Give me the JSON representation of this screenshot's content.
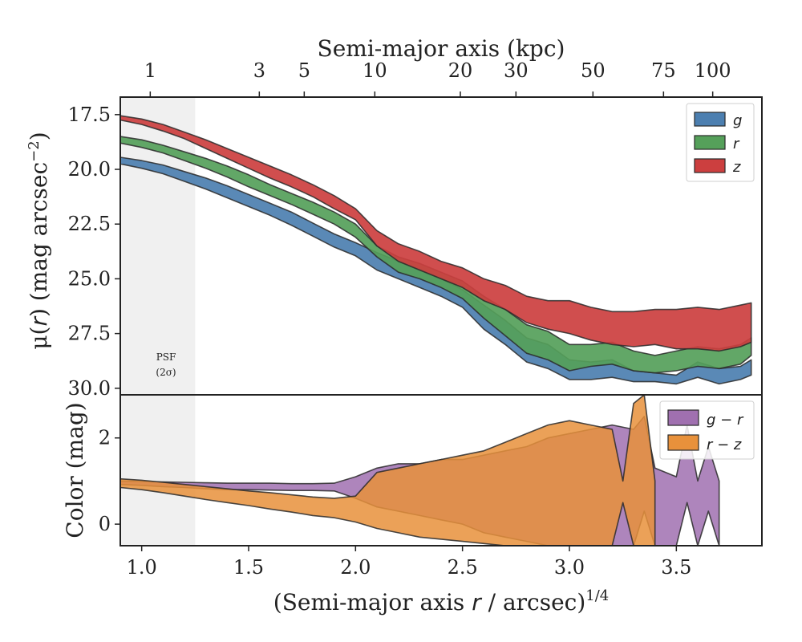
{
  "chart_data": [
    {
      "type": "area",
      "panel": "surface-brightness",
      "top_axis": {
        "label": "Semi-major axis (kpc)",
        "ticks": [
          {
            "label": "1",
            "x": 1.04
          },
          {
            "label": "3",
            "x": 1.55
          },
          {
            "label": "5",
            "x": 1.76
          },
          {
            "label": "10",
            "x": 2.09
          },
          {
            "label": "20",
            "x": 2.49
          },
          {
            "label": "30",
            "x": 2.75
          },
          {
            "label": "50",
            "x": 3.11
          },
          {
            "label": "75",
            "x": 3.44
          },
          {
            "label": "100",
            "x": 3.67
          }
        ]
      },
      "ylabel": "μ(r) (mag arcsec⁻²)",
      "ylabel_parts": {
        "mu": "μ",
        "r": "r",
        "rest": ") (mag arcsec",
        "sup": "−2",
        "close": ")"
      },
      "ylim": [
        30.3,
        16.7
      ],
      "y_ticks": [
        "17.5",
        "20.0",
        "22.5",
        "25.0",
        "27.5",
        "30.0"
      ],
      "y_tick_values": [
        17.5,
        20.0,
        22.5,
        25.0,
        27.5,
        30.0
      ],
      "psf_label": [
        "PSF",
        "(2σ)"
      ],
      "psf_range": [
        0.9,
        1.25
      ],
      "legend": {
        "position": "top-right",
        "entries": [
          "g",
          "r",
          "z"
        ]
      },
      "series": [
        {
          "name": "g",
          "color": "#4c7fb0",
          "x": [
            0.9,
            1.0,
            1.1,
            1.2,
            1.3,
            1.4,
            1.5,
            1.6,
            1.7,
            1.8,
            1.9,
            2.0,
            2.1,
            2.2,
            2.3,
            2.4,
            2.5,
            2.6,
            2.7,
            2.8,
            2.9,
            3.0,
            3.1,
            3.2,
            3.3,
            3.4,
            3.5,
            3.6,
            3.7,
            3.8,
            3.85
          ],
          "lo": [
            19.45,
            19.6,
            19.8,
            20.1,
            20.4,
            20.75,
            21.15,
            21.55,
            21.95,
            22.45,
            22.95,
            23.35,
            23.8,
            24.2,
            24.55,
            25.0,
            25.5,
            26.2,
            26.9,
            27.7,
            28.0,
            28.7,
            28.8,
            28.7,
            29.2,
            29.3,
            29.4,
            28.8,
            29.1,
            29.0,
            28.7
          ],
          "hi": [
            19.75,
            19.95,
            20.2,
            20.55,
            20.9,
            21.3,
            21.7,
            22.1,
            22.55,
            23.05,
            23.55,
            23.95,
            24.6,
            25.0,
            25.4,
            25.8,
            26.3,
            27.3,
            28.0,
            28.8,
            29.1,
            29.6,
            29.6,
            29.5,
            29.7,
            29.7,
            29.8,
            29.5,
            29.8,
            29.6,
            29.4
          ]
        },
        {
          "name": "r",
          "color": "#55a05a",
          "x": [
            0.9,
            1.0,
            1.1,
            1.2,
            1.3,
            1.4,
            1.5,
            1.6,
            1.7,
            1.8,
            1.9,
            2.0,
            2.1,
            2.2,
            2.3,
            2.4,
            2.5,
            2.6,
            2.7,
            2.8,
            2.9,
            3.0,
            3.1,
            3.2,
            3.3,
            3.4,
            3.5,
            3.6,
            3.7,
            3.8,
            3.85
          ],
          "lo": [
            18.5,
            18.65,
            18.9,
            19.2,
            19.5,
            19.85,
            20.25,
            20.7,
            21.1,
            21.5,
            21.95,
            22.5,
            23.5,
            24.0,
            24.3,
            24.7,
            25.1,
            25.8,
            26.4,
            27.1,
            27.4,
            28.0,
            28.0,
            27.9,
            28.3,
            28.5,
            28.3,
            28.1,
            28.2,
            28.0,
            27.7
          ],
          "hi": [
            18.8,
            19.0,
            19.25,
            19.6,
            19.95,
            20.35,
            20.8,
            21.2,
            21.6,
            22.05,
            22.5,
            23.1,
            24.0,
            24.7,
            25.0,
            25.4,
            25.9,
            26.8,
            27.6,
            28.4,
            28.7,
            29.2,
            29.0,
            28.9,
            29.2,
            29.3,
            29.2,
            29.0,
            29.1,
            28.9,
            28.5
          ]
        },
        {
          "name": "z",
          "color": "#cc3f3f",
          "x": [
            0.9,
            1.0,
            1.1,
            1.2,
            1.3,
            1.4,
            1.5,
            1.6,
            1.7,
            1.8,
            1.9,
            2.0,
            2.1,
            2.2,
            2.3,
            2.4,
            2.5,
            2.6,
            2.7,
            2.8,
            2.9,
            3.0,
            3.1,
            3.2,
            3.3,
            3.4,
            3.5,
            3.6,
            3.7,
            3.8,
            3.85
          ],
          "lo": [
            17.55,
            17.7,
            17.95,
            18.3,
            18.65,
            19.05,
            19.45,
            19.85,
            20.25,
            20.7,
            21.2,
            21.8,
            22.8,
            23.4,
            23.75,
            24.2,
            24.5,
            25.0,
            25.3,
            25.8,
            26.0,
            26.0,
            26.3,
            26.5,
            26.5,
            26.4,
            26.4,
            26.3,
            26.4,
            26.2,
            26.1
          ],
          "hi": [
            17.75,
            17.95,
            18.25,
            18.6,
            19.05,
            19.5,
            19.95,
            20.4,
            20.8,
            21.25,
            21.8,
            22.3,
            23.5,
            24.2,
            24.6,
            25.0,
            25.4,
            26.0,
            26.4,
            27.0,
            27.3,
            27.5,
            27.8,
            28.0,
            28.1,
            28.0,
            28.2,
            28.2,
            28.3,
            28.1,
            27.9
          ]
        }
      ]
    },
    {
      "type": "area",
      "panel": "color",
      "xlabel": "(Semi-major axis r / arcsec)^1/4",
      "xlabel_parts": {
        "pre": "(Semi-major axis ",
        "r": "r",
        "post": " / arcsec)",
        "sup": "1/4"
      },
      "xlim": [
        0.9,
        3.9
      ],
      "x_ticks": [
        "1.0",
        "1.5",
        "2.0",
        "2.5",
        "3.0",
        "3.5"
      ],
      "x_tick_values": [
        1.0,
        1.5,
        2.0,
        2.5,
        3.0,
        3.5
      ],
      "ylabel": "Color (mag)",
      "ylim": [
        -0.5,
        3.0
      ],
      "y_ticks": [
        "0",
        "2"
      ],
      "y_tick_values": [
        0,
        2
      ],
      "legend": {
        "position": "top-right",
        "entries": [
          "g − r",
          "r − z"
        ]
      },
      "series": [
        {
          "name": "g − r",
          "color": "#a070b0",
          "x": [
            0.9,
            1.0,
            1.1,
            1.2,
            1.3,
            1.4,
            1.5,
            1.6,
            1.7,
            1.8,
            1.9,
            2.0,
            2.1,
            2.2,
            2.3,
            2.4,
            2.5,
            2.6,
            2.7,
            2.8,
            2.9,
            3.0,
            3.1,
            3.2,
            3.3,
            3.35,
            3.4,
            3.5,
            3.55,
            3.6,
            3.65,
            3.7
          ],
          "lo": [
            0.92,
            0.9,
            0.87,
            0.85,
            0.82,
            0.8,
            0.8,
            0.79,
            0.78,
            0.78,
            0.77,
            0.6,
            0.4,
            0.3,
            0.2,
            0.1,
            0.0,
            -0.2,
            -0.3,
            -0.4,
            -0.5,
            -0.5,
            -0.5,
            -0.5,
            -0.5,
            0.3,
            -0.5,
            -0.5,
            0.5,
            -0.5,
            0.3,
            -0.5
          ],
          "hi": [
            1.0,
            0.99,
            0.98,
            0.97,
            0.96,
            0.95,
            0.95,
            0.95,
            0.94,
            0.94,
            0.95,
            1.1,
            1.3,
            1.4,
            1.4,
            1.5,
            1.5,
            1.6,
            1.7,
            1.8,
            2.0,
            2.1,
            2.2,
            2.3,
            2.2,
            2.5,
            1.3,
            1.1,
            2.3,
            1.0,
            1.8,
            1.0
          ]
        },
        {
          "name": "r − z",
          "color": "#e8913b",
          "x": [
            0.9,
            1.0,
            1.1,
            1.2,
            1.3,
            1.4,
            1.5,
            1.6,
            1.7,
            1.8,
            1.9,
            2.0,
            2.1,
            2.2,
            2.3,
            2.4,
            2.5,
            2.6,
            2.7,
            2.8,
            2.9,
            3.0,
            3.1,
            3.2,
            3.25,
            3.3,
            3.35,
            3.4
          ],
          "lo": [
            0.85,
            0.8,
            0.73,
            0.65,
            0.57,
            0.5,
            0.43,
            0.35,
            0.28,
            0.2,
            0.15,
            0.05,
            -0.1,
            -0.2,
            -0.3,
            -0.35,
            -0.4,
            -0.45,
            -0.5,
            -0.5,
            -0.5,
            -0.5,
            -0.5,
            -0.5,
            0.5,
            -0.5,
            -0.5,
            -0.5
          ],
          "hi": [
            1.05,
            1.02,
            0.97,
            0.92,
            0.87,
            0.82,
            0.77,
            0.73,
            0.68,
            0.63,
            0.6,
            0.65,
            1.2,
            1.3,
            1.4,
            1.5,
            1.6,
            1.7,
            1.9,
            2.1,
            2.3,
            2.4,
            2.3,
            2.2,
            1.0,
            2.8,
            3.0,
            1.0
          ]
        }
      ]
    }
  ]
}
